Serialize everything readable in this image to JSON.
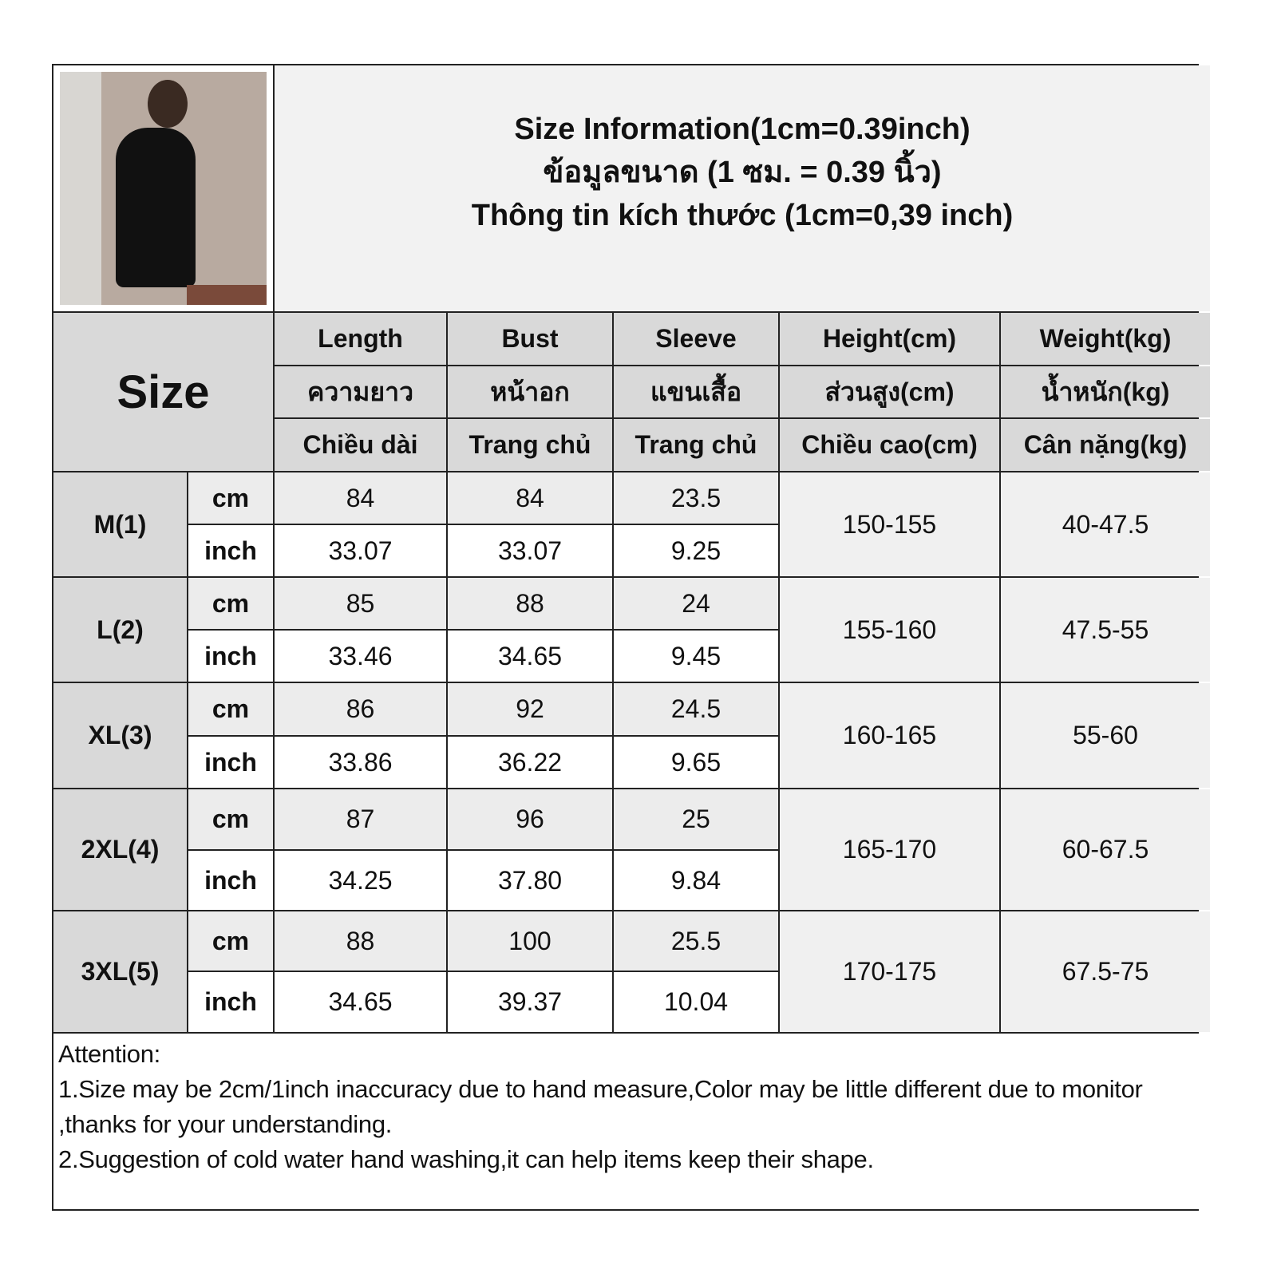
{
  "title": {
    "line1": "Size Information(1cm=0.39inch)",
    "line2": "ข้อมูลขนาด (1 ซม. = 0.39 นิ้ว)",
    "line3": "Thông tin kích thước (1cm=0,39 inch)"
  },
  "size_header": "Size",
  "columns": [
    {
      "en": "Length",
      "th": "ความยาว",
      "vi": "Chiều dài"
    },
    {
      "en": "Bust",
      "th": "หน้าอก",
      "vi": "Trang chủ"
    },
    {
      "en": "Sleeve",
      "th": "แขนเสื้อ",
      "vi": "Trang chủ"
    },
    {
      "en": "Height(cm)",
      "th": "ส่วนสูง(cm)",
      "vi": "Chiều cao(cm)"
    },
    {
      "en": "Weight(kg)",
      "th": "น้ำหนัก(kg)",
      "vi": "Cân nặng(kg)"
    }
  ],
  "units": {
    "cm": "cm",
    "inch": "inch"
  },
  "sizes": [
    {
      "name": "M(1)",
      "cm": [
        "84",
        "84",
        "23.5"
      ],
      "inch": [
        "33.07",
        "33.07",
        "9.25"
      ],
      "height": "150-155",
      "weight": "40-47.5"
    },
    {
      "name": "L(2)",
      "cm": [
        "85",
        "88",
        "24"
      ],
      "inch": [
        "33.46",
        "34.65",
        "9.45"
      ],
      "height": "155-160",
      "weight": "47.5-55"
    },
    {
      "name": "XL(3)",
      "cm": [
        "86",
        "92",
        "24.5"
      ],
      "inch": [
        "33.86",
        "36.22",
        "9.65"
      ],
      "height": "160-165",
      "weight": "55-60"
    },
    {
      "name": "2XL(4)",
      "cm": [
        "87",
        "96",
        "25"
      ],
      "inch": [
        "34.25",
        "37.80",
        "9.84"
      ],
      "height": "165-170",
      "weight": "60-67.5"
    },
    {
      "name": "3XL(5)",
      "cm": [
        "88",
        "100",
        "25.5"
      ],
      "inch": [
        "34.65",
        "39.37",
        "10.04"
      ],
      "height": "170-175",
      "weight": "67.5-75"
    }
  ],
  "attention": {
    "heading": "Attention:",
    "note1": "1.Size may be 2cm/1inch inaccuracy due to hand measure,Color may be little different due to monitor ,thanks for your understanding.",
    "note2": "2.Suggestion of cold water hand washing,it can help items keep their shape."
  }
}
